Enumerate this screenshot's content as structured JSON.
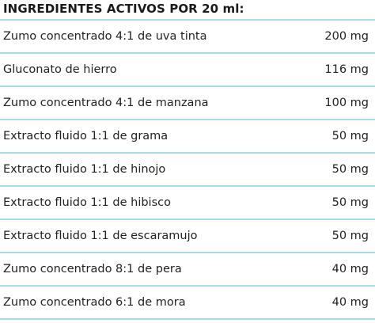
{
  "heading": "INGREDIENTES ACTIVOS POR 20 ml:",
  "ingredients": [
    {
      "name": "Zumo concentrado 4:1 de uva tinta",
      "amount": "200 mg"
    },
    {
      "name": "Gluconato de hierro",
      "amount": "116 mg"
    },
    {
      "name": "Zumo concentrado 4:1 de manzana",
      "amount": "100 mg"
    },
    {
      "name": "Extracto fluido 1:1 de grama",
      "amount": "50 mg"
    },
    {
      "name": "Extracto fluido 1:1 de hinojo",
      "amount": "50 mg"
    },
    {
      "name": "Extracto fluido 1:1 de hibisco",
      "amount": "50 mg"
    },
    {
      "name": "Extracto fluido 1:1 de escaramujo",
      "amount": "50 mg"
    },
    {
      "name": "Zumo concentrado 8:1 de pera",
      "amount": "40 mg"
    },
    {
      "name": "Zumo concentrado 6:1 de mora",
      "amount": "40 mg"
    }
  ],
  "colors": {
    "divider": "#a9dcef",
    "text": "#222222"
  }
}
